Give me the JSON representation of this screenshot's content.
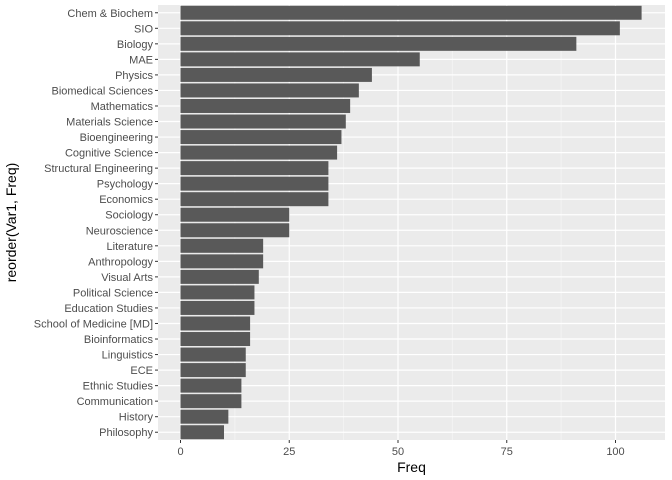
{
  "chart_data": {
    "type": "bar",
    "orientation": "horizontal",
    "xlabel": "Freq",
    "ylabel": "reorder(Var1, Freq)",
    "xlim": [
      0,
      110
    ],
    "xticks": [
      0,
      25,
      50,
      75,
      100
    ],
    "grid": true,
    "colors": {
      "bar": "#595959",
      "panel": "#ebebeb",
      "grid_major": "#ffffff",
      "grid_minor": "#f4f4f4",
      "tick_text": "#4d4d4d",
      "title_text": "#000000"
    },
    "categories": [
      "Chem & Biochem",
      "SIO",
      "Biology",
      "MAE",
      "Physics",
      "Biomedical Sciences",
      "Mathematics",
      "Materials Science",
      "Bioengineering",
      "Cognitive Science",
      "Structural Engineering",
      "Psychology",
      "Economics",
      "Sociology",
      "Neuroscience",
      "Literature",
      "Anthropology",
      "Visual Arts",
      "Political Science",
      "Education Studies",
      "School of Medicine [MD]",
      "Bioinformatics",
      "Linguistics",
      "ECE",
      "Ethnic Studies",
      "Communication",
      "History",
      "Philosophy"
    ],
    "values": [
      106,
      101,
      91,
      55,
      44,
      41,
      39,
      38,
      37,
      36,
      34,
      34,
      34,
      25,
      25,
      19,
      19,
      18,
      17,
      17,
      16,
      16,
      15,
      15,
      14,
      14,
      11,
      10
    ]
  }
}
